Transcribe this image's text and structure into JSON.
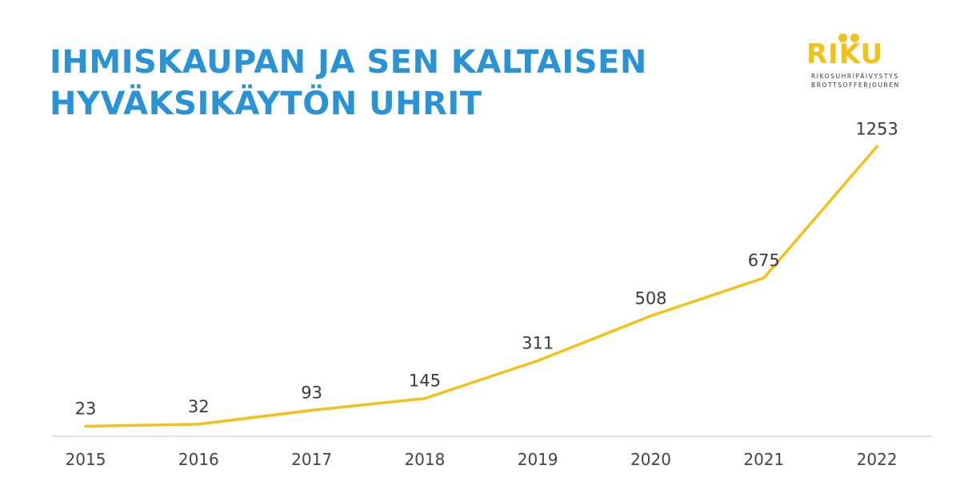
{
  "header": {
    "title_line1": "IHMISKAUPAN JA SEN KALTAISEN",
    "title_line2": "HYVÄKSIKÄYTÖN UHRIT"
  },
  "logo": {
    "word": "RIKU",
    "line1": "RIKOSUHRIPÄIVYSTYS",
    "line2": "BROTTSOFFERJOUREN"
  },
  "colors": {
    "title": "#2a93d5",
    "line": "#f3c219",
    "axis": "#d9d9d9"
  },
  "chart_data": {
    "type": "line",
    "title": "IHMISKAUPAN JA SEN KALTAISEN HYVÄKSIKÄYTÖN UHRIT",
    "categories": [
      "2015",
      "2016",
      "2017",
      "2018",
      "2019",
      "2020",
      "2021",
      "2022"
    ],
    "series": [
      {
        "values": [
          23,
          32,
          93,
          145,
          311,
          508,
          675,
          1253
        ]
      }
    ],
    "data_labels": [
      "23",
      "32",
      "93",
      "145",
      "311",
      "508",
      "675",
      "1253"
    ],
    "ylim": [
      0,
      1300
    ],
    "grid": false,
    "legend": "none"
  }
}
